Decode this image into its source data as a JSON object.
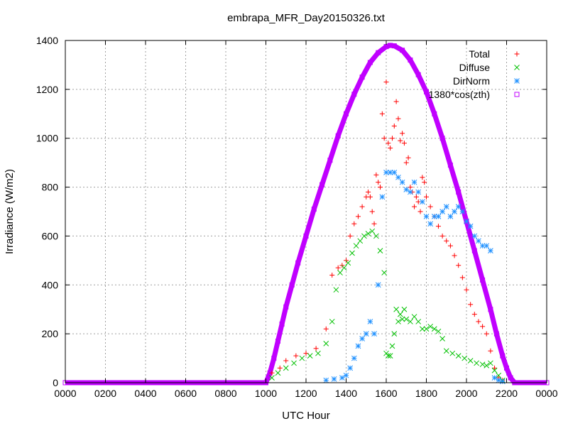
{
  "chart_data": {
    "type": "scatter",
    "title": "embrapa_MFR_Day20150326.txt",
    "xlabel": "UTC Hour",
    "ylabel": "Irradiance (W/m2)",
    "xlim": [
      0,
      24
    ],
    "ylim": [
      0,
      1400
    ],
    "x_ticks": [
      0,
      2,
      4,
      6,
      8,
      10,
      12,
      14,
      16,
      18,
      20,
      22,
      24
    ],
    "x_tick_labels": [
      "0000",
      "0200",
      "0400",
      "0600",
      "0800",
      "1000",
      "1200",
      "1400",
      "1600",
      "1800",
      "2000",
      "2200",
      "0000"
    ],
    "y_ticks": [
      0,
      200,
      400,
      600,
      800,
      1000,
      1200,
      1400
    ],
    "y_tick_labels": [
      "0",
      "200",
      "400",
      "600",
      "800",
      "1000",
      "1200",
      "1400"
    ],
    "grid": true,
    "legend_position": "top-right",
    "series": [
      {
        "name": "Total",
        "color": "#ff0000",
        "marker": "plus",
        "x": [
          10.3,
          10.7,
          11.0,
          11.5,
          12.0,
          12.5,
          13.0,
          13.3,
          13.6,
          13.8,
          14.0,
          14.2,
          14.4,
          14.6,
          14.8,
          15.0,
          15.1,
          15.2,
          15.3,
          15.4,
          15.5,
          15.6,
          15.7,
          15.8,
          15.9,
          16.0,
          16.1,
          16.2,
          16.3,
          16.4,
          16.5,
          16.6,
          16.7,
          16.8,
          16.9,
          17.0,
          17.1,
          17.2,
          17.3,
          17.4,
          17.5,
          17.6,
          17.7,
          17.8,
          17.9,
          18.0,
          18.2,
          18.4,
          18.6,
          18.8,
          19.0,
          19.2,
          19.4,
          19.6,
          19.8,
          20.0,
          20.2,
          20.4,
          20.6,
          20.8,
          21.0,
          21.2,
          21.4,
          21.6,
          21.8
        ],
        "y": [
          40,
          60,
          90,
          110,
          120,
          140,
          220,
          440,
          470,
          480,
          500,
          600,
          650,
          680,
          720,
          760,
          780,
          760,
          700,
          650,
          850,
          820,
          800,
          1100,
          1000,
          1230,
          980,
          960,
          1000,
          1050,
          1150,
          1080,
          990,
          1020,
          980,
          900,
          920,
          800,
          780,
          720,
          760,
          740,
          700,
          840,
          820,
          760,
          720,
          680,
          640,
          600,
          580,
          560,
          520,
          480,
          430,
          380,
          320,
          280,
          250,
          230,
          200,
          130,
          60,
          20,
          10
        ]
      },
      {
        "name": "Diffuse",
        "color": "#00c000",
        "marker": "cross",
        "x": [
          10.3,
          10.6,
          11.0,
          11.4,
          11.8,
          12.2,
          12.6,
          13.0,
          13.3,
          13.5,
          13.7,
          13.9,
          14.1,
          14.3,
          14.5,
          14.7,
          14.9,
          15.1,
          15.3,
          15.5,
          15.7,
          15.9,
          16.0,
          16.1,
          16.2,
          16.3,
          16.4,
          16.5,
          16.6,
          16.7,
          16.8,
          16.9,
          17.0,
          17.2,
          17.4,
          17.6,
          17.8,
          18.0,
          18.2,
          18.4,
          18.6,
          18.8,
          19.0,
          19.3,
          19.6,
          19.9,
          20.2,
          20.5,
          20.8,
          21.0,
          21.2,
          21.4,
          21.6,
          21.8
        ],
        "y": [
          20,
          40,
          60,
          80,
          100,
          110,
          120,
          160,
          250,
          380,
          450,
          470,
          490,
          530,
          560,
          580,
          600,
          610,
          620,
          600,
          540,
          450,
          120,
          110,
          110,
          150,
          200,
          300,
          250,
          280,
          260,
          300,
          260,
          250,
          270,
          250,
          220,
          220,
          230,
          220,
          210,
          180,
          130,
          120,
          110,
          100,
          90,
          80,
          75,
          70,
          80,
          50,
          30,
          10
        ]
      },
      {
        "name": "DirNorm",
        "color": "#1e90ff",
        "marker": "star",
        "x": [
          13.0,
          13.4,
          13.8,
          14.0,
          14.2,
          14.4,
          14.6,
          14.8,
          15.0,
          15.2,
          15.4,
          15.6,
          15.8,
          16.0,
          16.2,
          16.4,
          16.6,
          16.8,
          17.0,
          17.2,
          17.4,
          17.6,
          17.8,
          18.0,
          18.2,
          18.4,
          18.6,
          18.8,
          19.0,
          19.2,
          19.4,
          19.6,
          19.8,
          20.0,
          20.2,
          20.4,
          20.6,
          20.8,
          21.0,
          21.2,
          21.4,
          21.6,
          21.8
        ],
        "y": [
          10,
          15,
          20,
          30,
          60,
          100,
          150,
          180,
          200,
          250,
          200,
          400,
          760,
          860,
          860,
          860,
          840,
          820,
          790,
          780,
          820,
          780,
          740,
          680,
          650,
          680,
          680,
          700,
          720,
          680,
          700,
          720,
          700,
          660,
          640,
          600,
          580,
          560,
          560,
          540,
          20,
          10,
          5
        ]
      },
      {
        "name": "1380*cos(zth)",
        "color": "#c000ff",
        "marker": "square",
        "type": "curve",
        "x": [
          0,
          1,
          2,
          3,
          4,
          5,
          6,
          7,
          8,
          9,
          9.6,
          10.0,
          10.2,
          10.4,
          10.6,
          10.8,
          11.0,
          11.3,
          11.6,
          12.0,
          12.4,
          12.8,
          13.2,
          13.6,
          14.0,
          14.4,
          14.8,
          15.2,
          15.6,
          16.0,
          16.2,
          16.4,
          16.8,
          17.2,
          17.6,
          18.0,
          18.4,
          18.8,
          19.2,
          19.6,
          20.0,
          20.4,
          20.8,
          21.2,
          21.5,
          21.8,
          22.0,
          22.2,
          22.4,
          22.6,
          23,
          24
        ],
        "y": [
          0,
          0,
          0,
          0,
          0,
          0,
          0,
          0,
          0,
          0,
          0,
          0,
          40,
          100,
          170,
          240,
          310,
          400,
          490,
          600,
          710,
          810,
          910,
          1010,
          1100,
          1180,
          1250,
          1310,
          1350,
          1375,
          1380,
          1378,
          1360,
          1320,
          1260,
          1190,
          1100,
          1000,
          890,
          780,
          660,
          540,
          420,
          300,
          200,
          110,
          60,
          20,
          0,
          0,
          0,
          0
        ]
      }
    ]
  }
}
